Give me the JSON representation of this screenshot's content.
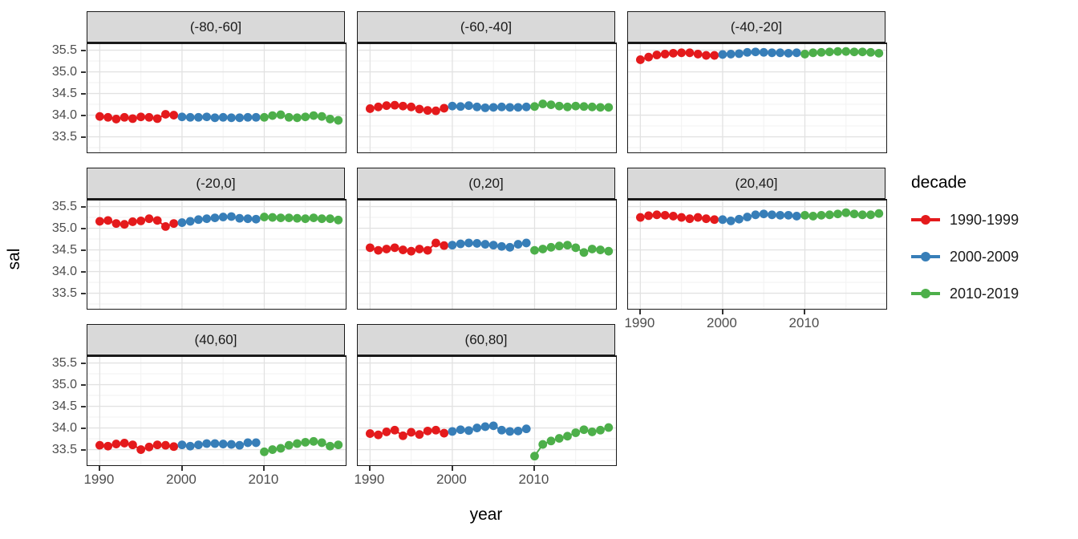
{
  "figure": {
    "xlabel": "year",
    "ylabel": "sal"
  },
  "chart_data": {
    "type": "scatter",
    "style": "line+point, ggplot facet grid",
    "xlabel": "year",
    "ylabel": "sal",
    "xlim": [
      1988.5,
      2019.9
    ],
    "ylim": [
      33.14,
      35.64
    ],
    "x_ticks": [
      1990,
      2000,
      2010
    ],
    "y_ticks": [
      35.5,
      35.0,
      34.5,
      34.0,
      33.5
    ],
    "x_minor": [
      1995,
      2005,
      2015
    ],
    "y_minor": [
      33.25,
      33.75,
      34.25,
      34.75,
      35.25
    ],
    "grid": true,
    "legend": {
      "title": "decade",
      "position": "right",
      "entries": [
        {
          "label": "1990-1999",
          "color": "#E41A1C"
        },
        {
          "label": "2000-2009",
          "color": "#377EB8"
        },
        {
          "label": "2010-2019",
          "color": "#4DAF4A"
        }
      ]
    },
    "facets": [
      {
        "label": "(-80,-60]",
        "series": [
          {
            "decade": "1990-1999",
            "start_year": 1990,
            "values": [
              33.97,
              33.95,
              33.91,
              33.95,
              33.92,
              33.96,
              33.95,
              33.92,
              34.02,
              34.0
            ]
          },
          {
            "decade": "2000-2009",
            "start_year": 2000,
            "values": [
              33.96,
              33.95,
              33.95,
              33.96,
              33.94,
              33.95,
              33.94,
              33.94,
              33.95,
              33.95
            ]
          },
          {
            "decade": "2010-2019",
            "start_year": 2010,
            "values": [
              33.95,
              33.99,
              34.01,
              33.95,
              33.94,
              33.96,
              33.99,
              33.97,
              33.91,
              33.88
            ]
          }
        ]
      },
      {
        "label": "(-60,-40]",
        "series": [
          {
            "decade": "1990-1999",
            "start_year": 1990,
            "values": [
              34.15,
              34.19,
              34.22,
              34.23,
              34.21,
              34.19,
              34.14,
              34.11,
              34.1,
              34.16
            ]
          },
          {
            "decade": "2000-2009",
            "start_year": 2000,
            "values": [
              34.21,
              34.2,
              34.22,
              34.19,
              34.17,
              34.18,
              34.19,
              34.18,
              34.18,
              34.19
            ]
          },
          {
            "decade": "2010-2019",
            "start_year": 2010,
            "values": [
              34.2,
              34.26,
              34.24,
              34.21,
              34.19,
              34.21,
              34.2,
              34.19,
              34.18,
              34.18
            ]
          }
        ]
      },
      {
        "label": "(-40,-20]",
        "series": [
          {
            "decade": "1990-1999",
            "start_year": 1990,
            "values": [
              35.28,
              35.34,
              35.39,
              35.41,
              35.43,
              35.44,
              35.44,
              35.41,
              35.38,
              35.38
            ]
          },
          {
            "decade": "2000-2009",
            "start_year": 2000,
            "values": [
              35.4,
              35.41,
              35.42,
              35.45,
              35.46,
              35.45,
              35.44,
              35.44,
              35.43,
              35.44
            ]
          },
          {
            "decade": "2010-2019",
            "start_year": 2010,
            "values": [
              35.41,
              35.44,
              35.45,
              35.46,
              35.47,
              35.47,
              35.46,
              35.46,
              35.45,
              35.43
            ]
          }
        ]
      },
      {
        "label": "(-20,0]",
        "series": [
          {
            "decade": "1990-1999",
            "start_year": 1990,
            "values": [
              35.16,
              35.18,
              35.11,
              35.09,
              35.15,
              35.17,
              35.22,
              35.18,
              35.04,
              35.11
            ]
          },
          {
            "decade": "2000-2009",
            "start_year": 2000,
            "values": [
              35.13,
              35.16,
              35.2,
              35.22,
              35.24,
              35.26,
              35.27,
              35.23,
              35.22,
              35.21
            ]
          },
          {
            "decade": "2010-2019",
            "start_year": 2010,
            "values": [
              35.26,
              35.25,
              35.24,
              35.24,
              35.23,
              35.22,
              35.24,
              35.22,
              35.22,
              35.19
            ]
          }
        ]
      },
      {
        "label": "(0,20]",
        "series": [
          {
            "decade": "1990-1999",
            "start_year": 1990,
            "values": [
              34.55,
              34.49,
              34.52,
              34.55,
              34.5,
              34.47,
              34.52,
              34.49,
              34.66,
              34.6
            ]
          },
          {
            "decade": "2000-2009",
            "start_year": 2000,
            "values": [
              34.61,
              34.64,
              34.66,
              34.65,
              34.63,
              34.61,
              34.58,
              34.56,
              34.63,
              34.66
            ]
          },
          {
            "decade": "2010-2019",
            "start_year": 2010,
            "values": [
              34.49,
              34.52,
              34.56,
              34.59,
              34.61,
              34.55,
              34.44,
              34.52,
              34.5,
              34.47
            ]
          }
        ]
      },
      {
        "label": "(20,40]",
        "series": [
          {
            "decade": "1990-1999",
            "start_year": 1990,
            "values": [
              35.25,
              35.29,
              35.31,
              35.3,
              35.28,
              35.25,
              35.22,
              35.25,
              35.22,
              35.2
            ]
          },
          {
            "decade": "2000-2009",
            "start_year": 2000,
            "values": [
              35.2,
              35.17,
              35.21,
              35.26,
              35.31,
              35.33,
              35.31,
              35.3,
              35.3,
              35.28
            ]
          },
          {
            "decade": "2010-2019",
            "start_year": 2010,
            "values": [
              35.3,
              35.28,
              35.3,
              35.31,
              35.33,
              35.36,
              35.33,
              35.31,
              35.31,
              35.34
            ]
          }
        ]
      },
      {
        "label": "(40,60]",
        "series": [
          {
            "decade": "1990-1999",
            "start_year": 1990,
            "values": [
              33.6,
              33.58,
              33.63,
              33.65,
              33.61,
              33.5,
              33.56,
              33.61,
              33.6,
              33.57
            ]
          },
          {
            "decade": "2000-2009",
            "start_year": 2000,
            "values": [
              33.61,
              33.58,
              33.61,
              33.64,
              33.64,
              33.63,
              33.62,
              33.6,
              33.66,
              33.66
            ]
          },
          {
            "decade": "2010-2019",
            "start_year": 2010,
            "values": [
              33.45,
              33.5,
              33.53,
              33.6,
              33.64,
              33.67,
              33.69,
              33.66,
              33.58,
              33.61
            ]
          }
        ]
      },
      {
        "label": "(60,80]",
        "series": [
          {
            "decade": "1990-1999",
            "start_year": 1990,
            "values": [
              33.87,
              33.84,
              33.91,
              33.95,
              33.82,
              33.9,
              33.85,
              33.93,
              33.95,
              33.88
            ]
          },
          {
            "decade": "2000-2009",
            "start_year": 2000,
            "values": [
              33.92,
              33.96,
              33.94,
              34.0,
              34.03,
              34.05,
              33.95,
              33.92,
              33.93,
              33.98
            ]
          },
          {
            "decade": "2010-2019",
            "start_year": 2010,
            "values": [
              33.35,
              33.62,
              33.7,
              33.76,
              33.81,
              33.89,
              33.96,
              33.91,
              33.95,
              34.01
            ]
          }
        ]
      }
    ]
  }
}
